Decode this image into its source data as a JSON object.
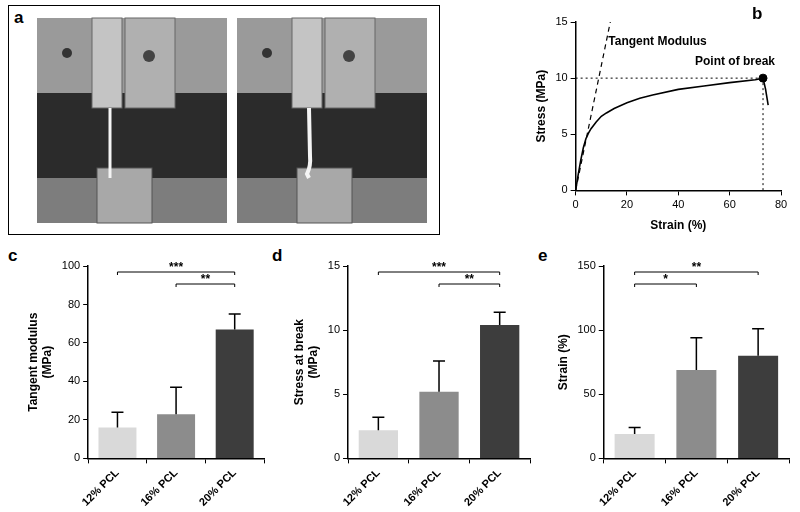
{
  "photo_panel": {
    "panel_label": "a"
  },
  "chart_data": [
    {
      "panel_label": "b",
      "type": "line",
      "x_label": "Strain (%)",
      "y_label": "Stress (MPa)",
      "x": [
        0,
        1,
        2,
        3,
        4,
        5,
        6,
        8,
        10,
        12,
        15,
        20,
        25,
        30,
        40,
        50,
        60,
        70,
        73,
        74,
        75
      ],
      "values": [
        0,
        1.4,
        2.7,
        3.8,
        4.6,
        5.1,
        5.5,
        6.1,
        6.6,
        6.9,
        7.3,
        7.8,
        8.2,
        8.5,
        9.0,
        9.3,
        9.6,
        9.85,
        10,
        9.0,
        7.6
      ],
      "color": "#000000",
      "xlim": [
        0,
        80
      ],
      "xticks": [
        0,
        20,
        40,
        60,
        80
      ],
      "ylim": [
        0,
        15
      ],
      "yticks": [
        0,
        5,
        10,
        15
      ],
      "grid": false,
      "tangent_line": {
        "x": [
          0,
          13.5
        ],
        "y": [
          0,
          15
        ]
      },
      "point_of_break": {
        "x": 73,
        "y": 10
      },
      "annotations": [
        "Tangent Modulus",
        "Point of break"
      ]
    },
    {
      "panel_label": "c",
      "type": "bar",
      "y_label": [
        "Tangent modulus",
        "(MPa)"
      ],
      "categories": [
        "12% PCL",
        "16% PCL",
        "20% PCL"
      ],
      "values": [
        16,
        23,
        67
      ],
      "errors": [
        8,
        14,
        8
      ],
      "colors": [
        "#d9d9d9",
        "#8c8c8c",
        "#3d3d3d"
      ],
      "ylim": [
        0,
        100
      ],
      "yticks": [
        0,
        20,
        40,
        60,
        80,
        100
      ],
      "grid": false,
      "significance": [
        {
          "from": "12% PCL",
          "to": "20% PCL",
          "label": "***"
        },
        {
          "from": "16% PCL",
          "to": "20% PCL",
          "label": "**"
        }
      ]
    },
    {
      "panel_label": "d",
      "type": "bar",
      "y_label": [
        "Stress at break",
        "(MPa)"
      ],
      "categories": [
        "12% PCL",
        "16% PCL",
        "20% PCL"
      ],
      "values": [
        2.2,
        5.2,
        10.4
      ],
      "errors": [
        1.0,
        2.4,
        1.0
      ],
      "colors": [
        "#d9d9d9",
        "#8c8c8c",
        "#3d3d3d"
      ],
      "ylim": [
        0,
        15
      ],
      "yticks": [
        0,
        5,
        10,
        15
      ],
      "grid": false,
      "significance": [
        {
          "from": "12% PCL",
          "to": "20% PCL",
          "label": "***"
        },
        {
          "from": "16% PCL",
          "to": "20% PCL",
          "label": "**"
        }
      ]
    },
    {
      "panel_label": "e",
      "type": "bar",
      "y_label": "Strain (%)",
      "categories": [
        "12% PCL",
        "16% PCL",
        "20% PCL"
      ],
      "values": [
        19,
        69,
        80
      ],
      "errors": [
        5,
        25,
        21
      ],
      "colors": [
        "#d9d9d9",
        "#8c8c8c",
        "#3d3d3d"
      ],
      "ylim": [
        0,
        150
      ],
      "yticks": [
        0,
        50,
        100,
        150
      ],
      "grid": false,
      "significance": [
        {
          "from": "12% PCL",
          "to": "16% PCL",
          "label": "*"
        },
        {
          "from": "12% PCL",
          "to": "20% PCL",
          "label": "**"
        }
      ]
    }
  ]
}
